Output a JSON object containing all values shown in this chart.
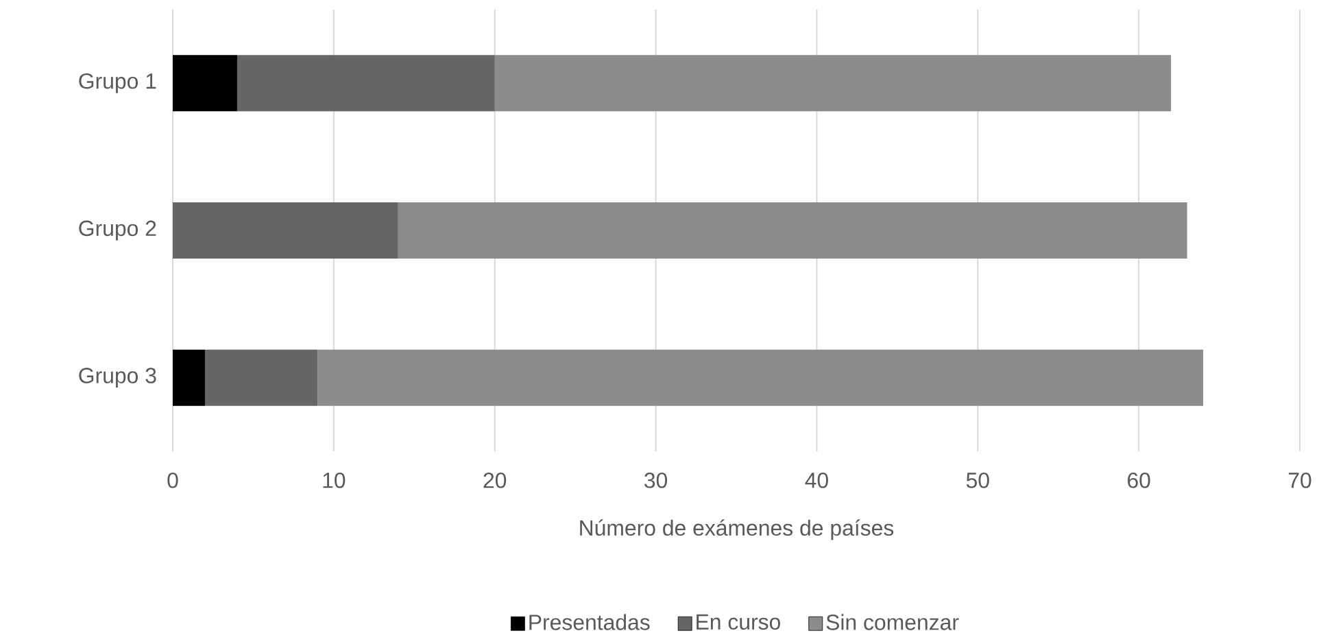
{
  "chart_data": {
    "type": "bar",
    "orientation": "horizontal",
    "stacked": true,
    "categories": [
      "Grupo 1",
      "Grupo  2",
      "Grupo 3"
    ],
    "series": [
      {
        "name": "Presentadas",
        "color": "#000000",
        "values": [
          4,
          0,
          2
        ]
      },
      {
        "name": "En curso",
        "color": "#666666",
        "values": [
          16,
          14,
          7
        ]
      },
      {
        "name": "Sin comenzar",
        "color": "#8c8c8c",
        "values": [
          42,
          49,
          55
        ]
      }
    ],
    "xlim": [
      0,
      70
    ],
    "xticks": [
      0,
      10,
      20,
      30,
      40,
      50,
      60,
      70
    ],
    "xlabel": "Número de exámenes de países",
    "grid": "x",
    "legend": "bottom"
  }
}
